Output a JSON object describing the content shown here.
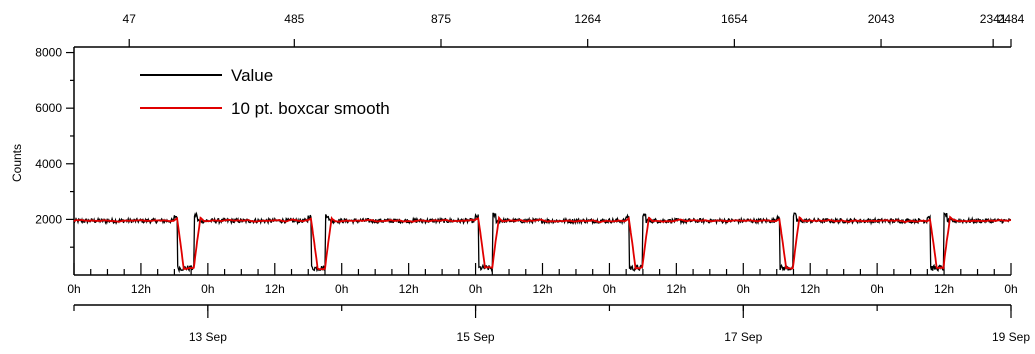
{
  "chart_data": {
    "type": "line",
    "title": "",
    "ylabel": "Counts",
    "ylim": [
      0,
      8200
    ],
    "y_ticks": [
      "2000",
      "4000",
      "6000",
      "8000"
    ],
    "x_time_labels": [
      "0h",
      "12h",
      "0h",
      "12h",
      "0h",
      "12h",
      "0h",
      "12h",
      "0h",
      "12h",
      "0h",
      "12h",
      "0h",
      "12h",
      "0h"
    ],
    "x_date_labels": [
      "13 Sep",
      "15 Sep",
      "17 Sep",
      "19 Sep"
    ],
    "x_index_labels": [
      "47",
      "485",
      "875",
      "1264",
      "1654",
      "2043",
      "2341",
      "2484"
    ],
    "x_range_hours": [
      0,
      168
    ],
    "x_start": "12 Sep 0h",
    "baseline": 1950,
    "dip_value": 150,
    "dips_hours": [
      [
        18.5,
        21.5
      ],
      [
        42.5,
        45
      ],
      [
        72.5,
        75
      ],
      [
        99.5,
        102
      ],
      [
        126.5,
        129
      ],
      [
        153.5,
        156
      ]
    ],
    "series": [
      {
        "name": "Value",
        "color": "#000000"
      },
      {
        "name": "10 pt. boxcar smooth",
        "color": "#e00000"
      }
    ],
    "legend_position": "top-left"
  }
}
